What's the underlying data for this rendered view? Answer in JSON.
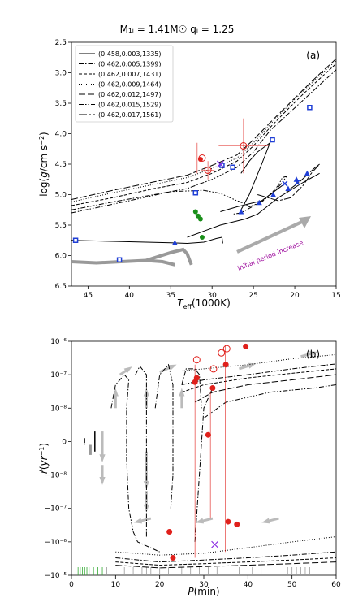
{
  "figure": {
    "title": "M₁ᵢ = 1.41M☉  qᵢ = 1.25"
  },
  "chart_data": [
    {
      "type": "line",
      "panel_label": "(a)",
      "xlabel": "T_eff(1000K)",
      "ylabel": "log(g/cm s⁻²)",
      "x_reversed": true,
      "y_reversed": true,
      "xlim": [
        47,
        15
      ],
      "ylim": [
        2.5,
        6.5
      ],
      "xticks": [
        45,
        40,
        35,
        30,
        25,
        20,
        15
      ],
      "yticks": [
        2.5,
        3.0,
        3.5,
        4.0,
        4.5,
        5.0,
        5.5,
        6.0,
        6.5
      ],
      "xticklabels": [
        "45",
        "40",
        "35",
        "30",
        "25",
        "20",
        "15"
      ],
      "yticklabels": [
        "2.5",
        "3.0",
        "3.5",
        "4.0",
        "4.5",
        "5.0",
        "5.5",
        "6.0",
        "6.5"
      ],
      "legend_position": "top-left",
      "annotation": "initial period increase",
      "colors": {
        "arrow": "#aaaaaa",
        "annotation": "#990099",
        "blue": "#1f3fd6",
        "red": "#e0201b",
        "green": "#1a8f1a",
        "gray": "#999999"
      },
      "series": [
        {
          "name": "(0.458,0.003,1335)",
          "dash": "solid",
          "points": [
            [
              47,
              5.75
            ],
            [
              44,
              5.76
            ],
            [
              41,
              5.77
            ],
            [
              38,
              5.78
            ],
            [
              35,
              5.79
            ],
            [
              33,
              5.8
            ],
            [
              31,
              5.78
            ],
            [
              29.5,
              5.72
            ],
            [
              28.8,
              5.7
            ],
            [
              28.7,
              5.8
            ]
          ]
        },
        {
          "name": "(0.462,0.005,1399)",
          "dash": "dashdot",
          "points": [
            [
              47,
              5.25
            ],
            [
              42,
              5.12
            ],
            [
              37,
              5.0
            ],
            [
              33,
              4.9
            ],
            [
              30,
              4.75
            ],
            [
              27,
              4.55
            ],
            [
              25,
              4.3
            ],
            [
              23,
              3.95
            ],
            [
              21,
              3.7
            ],
            [
              19,
              3.45
            ],
            [
              17,
              3.2
            ],
            [
              15,
              2.95
            ]
          ]
        },
        {
          "name": "(0.462,0.007,1431)",
          "dash": "dashed",
          "points": [
            [
              47,
              5.18
            ],
            [
              42,
              5.05
            ],
            [
              37,
              4.9
            ],
            [
              33,
              4.8
            ],
            [
              30,
              4.65
            ],
            [
              27,
              4.45
            ],
            [
              25,
              4.2
            ],
            [
              23,
              3.9
            ],
            [
              21,
              3.62
            ],
            [
              19,
              3.35
            ],
            [
              17,
              3.1
            ],
            [
              15,
              2.85
            ]
          ]
        },
        {
          "name": "(0.462,0.009,1464)",
          "dash": "dotted",
          "points": [
            [
              47,
              5.12
            ],
            [
              42,
              4.97
            ],
            [
              37,
              4.83
            ],
            [
              33,
              4.72
            ],
            [
              30,
              4.57
            ],
            [
              27,
              4.4
            ],
            [
              25,
              4.15
            ],
            [
              23,
              3.85
            ],
            [
              21,
              3.57
            ],
            [
              19,
              3.3
            ],
            [
              17,
              3.05
            ],
            [
              15,
              2.8
            ]
          ]
        },
        {
          "name": "(0.462,0.012,1497)",
          "dash": "longdash",
          "points": [
            [
              47,
              5.08
            ],
            [
              42,
              4.93
            ],
            [
              37,
              4.79
            ],
            [
              33,
              4.68
            ],
            [
              30,
              4.52
            ],
            [
              27,
              4.35
            ],
            [
              25,
              4.1
            ],
            [
              23,
              3.82
            ],
            [
              21,
              3.55
            ],
            [
              19,
              3.28
            ],
            [
              17,
              3.02
            ],
            [
              15,
              2.77
            ]
          ]
        },
        {
          "name": "(0.462,0.015,1529)",
          "dash": "dashdotdot",
          "points": [
            [
              47,
              5.3
            ],
            [
              40,
              5.1
            ],
            [
              35,
              4.95
            ],
            [
              31,
              4.93
            ],
            [
              29,
              4.98
            ],
            [
              27,
              5.1
            ],
            [
              26,
              5.15
            ],
            [
              25.5,
              5.2
            ],
            [
              24,
              5.12
            ],
            [
              22.5,
              4.95
            ],
            [
              21.5,
              4.8
            ],
            [
              21.0,
              4.7
            ],
            [
              21.5,
              4.72
            ],
            [
              22,
              4.85
            ],
            [
              23,
              5.0
            ],
            [
              24.5,
              5.15
            ],
            [
              26.5,
              5.3
            ],
            [
              27.5,
              5.32
            ]
          ]
        },
        {
          "name": "(0.462,0.017,1561)",
          "dash": "dashlong",
          "points": [
            [
              24.5,
              5.0
            ],
            [
              22,
              5.1
            ],
            [
              20.5,
              5.05
            ],
            [
              19,
              4.85
            ],
            [
              18,
              4.65
            ],
            [
              17,
              4.5
            ],
            [
              17.5,
              4.55
            ],
            [
              19.5,
              4.8
            ],
            [
              21,
              4.95
            ]
          ]
        }
      ],
      "extra_tracks": [
        {
          "color": "gray",
          "points": [
            [
              47,
              6.1
            ],
            [
              44,
              6.12
            ],
            [
              41,
              6.1
            ],
            [
              38,
              6.08
            ],
            [
              36,
              6.1
            ],
            [
              34.5,
              6.15
            ]
          ]
        },
        {
          "color": "gray",
          "points": [
            [
              38,
              6.08
            ],
            [
              35,
              5.95
            ],
            [
              33.5,
              5.9
            ],
            [
              33,
              5.97
            ],
            [
              32.5,
              6.15
            ]
          ]
        },
        {
          "color": "black",
          "points": [
            [
              33,
              5.7
            ],
            [
              29,
              5.5
            ],
            [
              26,
              5.4
            ],
            [
              24.5,
              5.32
            ],
            [
              22,
              5.05
            ],
            [
              19,
              4.8
            ],
            [
              17,
              4.65
            ]
          ]
        },
        {
          "color": "black",
          "points": [
            [
              29,
              5.28
            ],
            [
              27,
              5.2
            ],
            [
              24,
              5.1
            ],
            [
              21.5,
              4.85
            ]
          ]
        },
        {
          "color": "black",
          "points": [
            [
              26.5,
              4.65
            ],
            [
              25.5,
              4.45
            ],
            [
              24.5,
              4.3
            ],
            [
              23.5,
              4.2
            ],
            [
              23,
              4.15
            ],
            [
              24,
              4.5
            ],
            [
              25.5,
              5.0
            ],
            [
              26.5,
              5.25
            ]
          ]
        }
      ],
      "blue_squares": [
        [
          46.5,
          5.75
        ],
        [
          41.2,
          6.07
        ],
        [
          32.0,
          4.97
        ],
        [
          28.8,
          4.52
        ],
        [
          27.5,
          4.55
        ],
        [
          22.7,
          4.1
        ],
        [
          18.2,
          3.57
        ]
      ],
      "blue_triangles": [
        [
          34.5,
          5.79
        ],
        [
          26.5,
          5.28
        ],
        [
          24.3,
          5.13
        ],
        [
          22.6,
          5.0
        ],
        [
          20.8,
          4.9
        ],
        [
          19.8,
          4.75
        ],
        [
          18.5,
          4.65
        ]
      ],
      "blue_crosses": [
        [
          29.0,
          4.5
        ],
        [
          21.2,
          4.82
        ],
        [
          19.7,
          4.8
        ]
      ],
      "red_open": [
        [
          31.2,
          4.4
        ],
        [
          30.5,
          4.6
        ],
        [
          26.2,
          4.2
        ]
      ],
      "red_filled": [
        [
          31.4,
          4.42
        ]
      ],
      "green_points": [
        [
          32,
          5.28
        ],
        [
          31.7,
          5.35
        ],
        [
          31.4,
          5.4
        ],
        [
          31.2,
          5.7
        ]
      ],
      "red_error_bars": [
        [
          31.8,
          4.4,
          1.6,
          0.25
        ],
        [
          30.5,
          4.6,
          0.8,
          0.15
        ],
        [
          26.2,
          4.2,
          3.0,
          0.45
        ]
      ],
      "purple_cross": [
        [
          29.0,
          4.5
        ]
      ]
    },
    {
      "type": "line",
      "panel_label": "(b)",
      "xlabel": "P(min)",
      "ylabel": "ṙ(yr⁻¹)",
      "xlim": [
        0,
        60
      ],
      "yscale": "symlog",
      "linthresh": 1e-08,
      "ylim": [
        -1e-05,
        1e-06
      ],
      "xticks": [
        0,
        10,
        20,
        30,
        40,
        50,
        60
      ],
      "xticklabels": [
        "0",
        "10",
        "20",
        "30",
        "40",
        "50",
        "60"
      ],
      "yticks": [
        -1e-05,
        -1e-06,
        -1e-07,
        -1e-08,
        0,
        1e-08,
        1e-07,
        1e-06
      ],
      "yticklabels": [
        "−10⁻⁵",
        "−10⁻⁶",
        "−10⁻⁷",
        "−10⁻⁸",
        "0",
        "10⁻⁸",
        "10⁻⁷",
        "10⁻⁶"
      ],
      "lines_upper": [
        {
          "dash": "dotted",
          "points": [
            [
              25,
              1.3e-07
            ],
            [
              30,
              1.5e-07
            ],
            [
              40,
              2e-07
            ],
            [
              50,
              3e-07
            ],
            [
              60,
              4e-07
            ]
          ]
        },
        {
          "dash": "dashdot",
          "points": [
            [
              25,
              5e-08
            ],
            [
              30,
              7e-08
            ],
            [
              40,
              1e-07
            ],
            [
              50,
              1.5e-07
            ],
            [
              60,
              2.1e-07
            ]
          ]
        },
        {
          "dash": "dashed",
          "points": [
            [
              25,
              3e-08
            ],
            [
              30,
              5e-08
            ],
            [
              40,
              8e-08
            ],
            [
              50,
              1.1e-07
            ],
            [
              60,
              1.5e-07
            ]
          ]
        },
        {
          "dash": "longdash",
          "points": [
            [
              28,
              1.5e-08
            ],
            [
              32,
              3e-08
            ],
            [
              40,
              5e-08
            ],
            [
              50,
              7e-08
            ],
            [
              60,
              1e-07
            ]
          ]
        },
        {
          "dash": "dashdotdot",
          "points": [
            [
              30,
              7e-09
            ],
            [
              35,
              1.5e-08
            ],
            [
              45,
              3e-08
            ],
            [
              55,
              4e-08
            ],
            [
              60,
              5e-08
            ]
          ]
        }
      ],
      "lines_lower": [
        {
          "dash": "dotted",
          "points": [
            [
              10,
              -2e-06
            ],
            [
              20,
              -2.5e-06
            ],
            [
              30,
              -2.2e-06
            ],
            [
              40,
              -1.5e-06
            ],
            [
              50,
              -1e-06
            ],
            [
              60,
              -7e-07
            ]
          ]
        },
        {
          "dash": "dashdot",
          "points": [
            [
              10,
              -3e-06
            ],
            [
              20,
              -4e-06
            ],
            [
              30,
              -3.5e-06
            ],
            [
              40,
              -3e-06
            ],
            [
              50,
              -2.5e-06
            ],
            [
              60,
              -2e-06
            ]
          ]
        },
        {
          "dash": "dashed",
          "points": [
            [
              10,
              -4e-06
            ],
            [
              20,
              -5e-06
            ],
            [
              30,
              -4.5e-06
            ],
            [
              40,
              -4e-06
            ],
            [
              50,
              -3.5e-06
            ],
            [
              60,
              -3e-06
            ]
          ]
        },
        {
          "dash": "longdash",
          "points": [
            [
              10,
              -5e-06
            ],
            [
              20,
              -6e-06
            ],
            [
              30,
              -5.5e-06
            ],
            [
              40,
              -5e-06
            ],
            [
              50,
              -4.5e-06
            ],
            [
              60,
              -4e-06
            ]
          ]
        }
      ],
      "red_filled": [
        [
          28.0,
          6e-08
        ],
        [
          28.4,
          8e-08
        ],
        [
          32.0,
          4e-08
        ],
        [
          31.0,
          2e-09
        ],
        [
          35.0,
          2e-07
        ],
        [
          39.5,
          7e-07
        ],
        [
          22.2,
          -5e-07
        ],
        [
          23.0,
          -3e-06
        ],
        [
          35.5,
          -2.5e-07
        ],
        [
          37.5,
          -3e-07
        ]
      ],
      "red_open": [
        [
          28.4,
          2.8e-07
        ],
        [
          32.2,
          1.5e-07
        ],
        [
          34.0,
          4.5e-07
        ],
        [
          35.2,
          6e-07
        ]
      ],
      "purple_cross": [
        [
          32.5,
          -1.2e-06
        ]
      ],
      "red_vlines": [
        [
          28.0,
          -3e-06,
          2e-07
        ],
        [
          34.9,
          -2e-06,
          8e-07
        ],
        [
          31.5,
          -2e-07,
          3e-08
        ]
      ],
      "rug": [
        1,
        1.5,
        2,
        2.5,
        3,
        3.5,
        4,
        5,
        6,
        7,
        8,
        12,
        14,
        16,
        17,
        18,
        20,
        22,
        25,
        27,
        29,
        31,
        33,
        38,
        41,
        43,
        49,
        50,
        51,
        52,
        53,
        54
      ]
    }
  ]
}
